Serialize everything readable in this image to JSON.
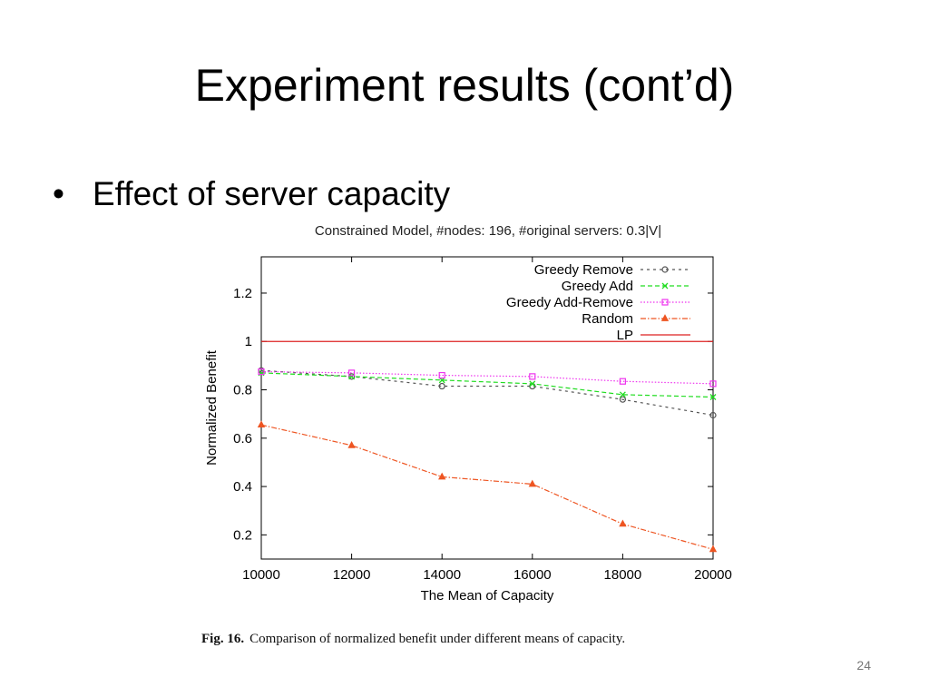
{
  "slide": {
    "title": "Experiment results (cont’d)",
    "bullet": "Effect of server capacity",
    "figure_label": "Fig. 16.",
    "caption": "Comparison of normalized benefit under different means of capacity.",
    "page_number": "24"
  },
  "chart_data": {
    "type": "line",
    "title": "Constrained Model, #nodes: 196, #original servers: 0.3|V|",
    "xlabel": "The Mean of Capacity",
    "ylabel": "Normalized Benefit",
    "xlim": [
      10000,
      20000
    ],
    "ylim": [
      0.1,
      1.35
    ],
    "x_ticks": [
      10000,
      12000,
      14000,
      16000,
      18000,
      20000
    ],
    "y_ticks": [
      0.2,
      0.4,
      0.6,
      0.8,
      1,
      1.2
    ],
    "y_tick_labels": [
      "0.2",
      "0.4",
      "0.6",
      "0.8",
      "1",
      "1.2"
    ],
    "x": [
      10000,
      12000,
      14000,
      16000,
      18000,
      20000
    ],
    "legend_position": "top-right",
    "grid": false,
    "series": [
      {
        "name": "Greedy Remove",
        "values": [
          0.88,
          0.855,
          0.815,
          0.815,
          0.76,
          0.695
        ],
        "color": "#555555",
        "marker": "circle",
        "dash": "3,4"
      },
      {
        "name": "Greedy Add",
        "values": [
          0.87,
          0.855,
          0.84,
          0.825,
          0.78,
          0.77
        ],
        "color": "#22dd22",
        "marker": "x",
        "dash": "5,3"
      },
      {
        "name": "Greedy Add-Remove",
        "values": [
          0.875,
          0.87,
          0.86,
          0.855,
          0.835,
          0.825
        ],
        "color": "#ee33ee",
        "marker": "square",
        "dash": "1.5,2"
      },
      {
        "name": "Random",
        "values": [
          0.655,
          0.57,
          0.44,
          0.41,
          0.245,
          0.14
        ],
        "color": "#ee5522",
        "marker": "triangle",
        "dash": "6,2,1.5,2"
      },
      {
        "name": "LP",
        "values": [
          1,
          1,
          1,
          1,
          1,
          1
        ],
        "color": "#dd2222",
        "marker": "none",
        "dash": ""
      }
    ]
  }
}
